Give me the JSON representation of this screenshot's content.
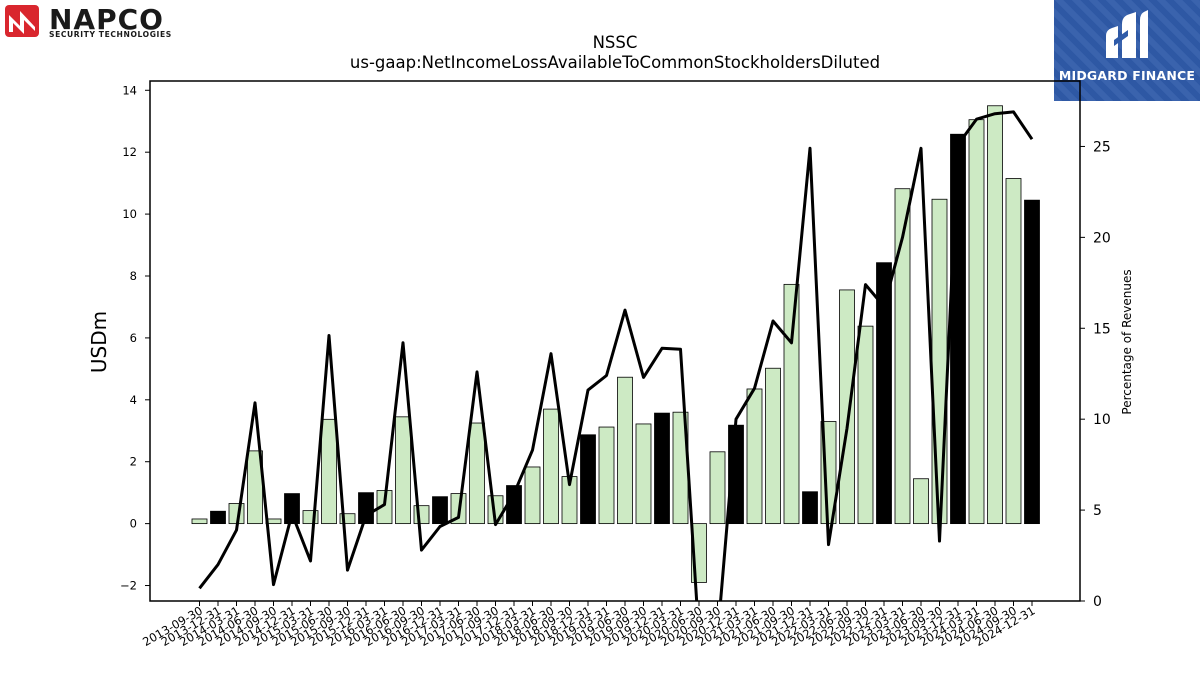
{
  "branding": {
    "left_logo_name": "NAPCO",
    "left_logo_tagline": "SECURITY TECHNOLOGIES",
    "right_logo_name": "MIDGARD FINANCE"
  },
  "colors": {
    "bar_light": "#cdeac4",
    "bar_dark": "#000000",
    "line": "#000000",
    "logo_box": "#2f5ba9",
    "napco_red": "#d9262e"
  },
  "chart_data": {
    "type": "bar",
    "title": "NSSC",
    "subtitle": "us-gaap:NetIncomeLossAvailableToCommonStockholdersDiluted",
    "ylabel": "USDm",
    "y2label": "Percentage of Revenues",
    "ylim": [
      -2.5,
      14.3
    ],
    "y2lim": [
      0,
      28.6
    ],
    "yticks": [
      -2,
      0,
      2,
      4,
      6,
      8,
      10,
      12,
      14
    ],
    "y2ticks": [
      0,
      5,
      10,
      15,
      20,
      25
    ],
    "grid": false,
    "categories": [
      "2013-09-30",
      "2013-12-31",
      "2014-03-31",
      "2014-06-30",
      "2014-09-30",
      "2014-12-31",
      "2015-03-31",
      "2015-06-30",
      "2015-09-30",
      "2015-12-31",
      "2016-03-31",
      "2016-06-30",
      "2016-09-30",
      "2016-12-31",
      "2017-03-31",
      "2017-06-30",
      "2017-09-30",
      "2017-12-31",
      "2018-03-31",
      "2018-06-30",
      "2018-09-30",
      "2018-12-31",
      "2019-03-31",
      "2019-06-30",
      "2019-09-30",
      "2019-12-31",
      "2020-03-31",
      "2020-06-30",
      "2020-09-30",
      "2020-12-31",
      "2021-03-31",
      "2021-06-30",
      "2021-09-30",
      "2021-12-31",
      "2022-03-31",
      "2022-06-30",
      "2022-09-30",
      "2022-12-31",
      "2023-03-31",
      "2023-06-30",
      "2023-09-30",
      "2023-12-31",
      "2024-03-31",
      "2024-06-30",
      "2024-09-30",
      "2024-12-31"
    ],
    "series": [
      {
        "kind": "bar",
        "values": [
          0.15,
          0.4,
          0.65,
          2.35,
          0.15,
          0.97,
          0.42,
          3.37,
          0.32,
          1.0,
          1.07,
          3.45,
          0.58,
          0.87,
          0.97,
          3.25,
          0.9,
          1.23,
          1.83,
          3.7,
          1.52,
          2.87,
          3.12,
          4.73,
          3.22,
          3.57,
          3.6,
          -1.9,
          2.32,
          3.18,
          4.35,
          5.02,
          7.73,
          1.03,
          3.3,
          7.55,
          6.38,
          8.43,
          10.82,
          1.45,
          10.48,
          12.58,
          13.05,
          13.5,
          11.15,
          10.45
        ],
        "dark_fiscal_year_end": [
          false,
          true,
          false,
          false,
          false,
          true,
          false,
          false,
          false,
          true,
          false,
          false,
          false,
          true,
          false,
          false,
          false,
          true,
          false,
          false,
          false,
          true,
          false,
          false,
          false,
          true,
          false,
          false,
          false,
          true,
          false,
          false,
          false,
          true,
          false,
          false,
          false,
          true,
          false,
          false,
          false,
          true,
          false,
          false,
          false,
          true
        ]
      },
      {
        "kind": "line",
        "axis": "right",
        "values": [
          0.7,
          2.0,
          3.9,
          10.9,
          0.9,
          4.8,
          2.2,
          14.6,
          1.7,
          4.7,
          5.3,
          14.2,
          2.8,
          4.1,
          4.6,
          12.6,
          4.2,
          5.9,
          8.3,
          13.6,
          6.4,
          11.6,
          12.4,
          16.0,
          12.3,
          13.9,
          13.85,
          -2.0,
          -2.0,
          10.0,
          11.7,
          15.4,
          14.2,
          24.9,
          3.1,
          9.5,
          17.4,
          16.2,
          20.0,
          24.9,
          3.3,
          25.1,
          26.5,
          26.8,
          26.9,
          25.4
        ],
        "continues_below_axis_min": true
      }
    ]
  }
}
